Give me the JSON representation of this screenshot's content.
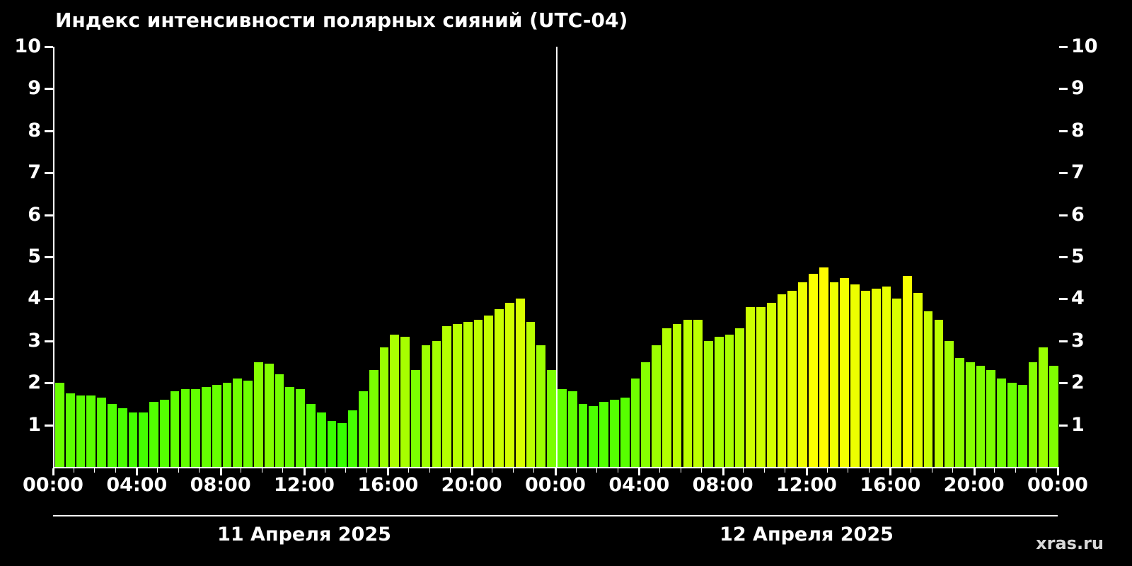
{
  "title": "Индекс интенсивности полярных сияний (UTC-04)",
  "watermark": "xras.ru",
  "chart_data": {
    "type": "bar",
    "title": "Индекс интенсивности полярных сияний (UTC-04)",
    "timezone_note": "UTC-04",
    "ylim": [
      0,
      10
    ],
    "y_ticks": [
      1,
      2,
      3,
      4,
      5,
      6,
      7,
      8,
      9,
      10
    ],
    "y_axis_sides": "both",
    "grid": "off",
    "bar_interval_minutes": 30,
    "x_tick_labels": [
      "00:00",
      "04:00",
      "08:00",
      "12:00",
      "16:00",
      "20:00",
      "00:00",
      "04:00",
      "08:00",
      "12:00",
      "16:00",
      "20:00",
      "00:00"
    ],
    "day_labels": [
      "11 Апреля 2025",
      "12 Апреля 2025"
    ],
    "series": [
      {
        "name": "11 Апреля 2025",
        "values": [
          2.0,
          1.75,
          1.7,
          1.7,
          1.65,
          1.5,
          1.4,
          1.3,
          1.3,
          1.55,
          1.6,
          1.8,
          1.85,
          1.85,
          1.9,
          1.95,
          2.0,
          2.1,
          2.05,
          2.5,
          2.45,
          2.2,
          1.9,
          1.85,
          1.5,
          1.3,
          1.1,
          1.05,
          1.35,
          1.8,
          2.3,
          2.85,
          3.15,
          3.1,
          2.3,
          2.9,
          3.0,
          3.35,
          3.4,
          3.45,
          3.5,
          3.6,
          3.75,
          3.9,
          4.0,
          3.45,
          2.9,
          2.3
        ]
      },
      {
        "name": "12 Апреля 2025",
        "values": [
          1.85,
          1.8,
          1.5,
          1.45,
          1.55,
          1.6,
          1.65,
          2.1,
          2.5,
          2.9,
          3.3,
          3.4,
          3.5,
          3.5,
          3.0,
          3.1,
          3.15,
          3.3,
          3.8,
          3.8,
          3.9,
          4.1,
          4.2,
          4.4,
          4.6,
          4.75,
          4.4,
          4.5,
          4.35,
          4.2,
          4.25,
          4.3,
          4.0,
          4.55,
          4.15,
          3.7,
          3.5,
          3.0,
          2.6,
          2.5,
          2.4,
          2.3,
          2.1,
          2.0,
          1.95,
          2.5,
          2.85,
          2.4
        ]
      }
    ],
    "color_scale": {
      "low_value": 1,
      "high_value": 5,
      "low_color": "#22ff00",
      "high_color": "#f5f500"
    }
  }
}
